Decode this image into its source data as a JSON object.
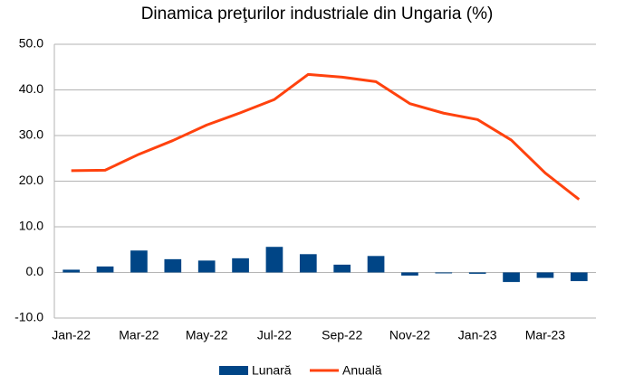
{
  "chart_data": {
    "type": "bar-line",
    "title": "Dinamica preţurilor industriale din Ungaria (%)",
    "categories": [
      "Jan-22",
      null,
      "Mar-22",
      null,
      "May-22",
      null,
      "Jul-22",
      null,
      "Sep-22",
      null,
      "Nov-22",
      null,
      "Jan-23",
      null,
      "Mar-23",
      null
    ],
    "series": [
      {
        "name": "Lunară",
        "type": "bar",
        "color": "#004586",
        "values": [
          0.6,
          1.3,
          4.8,
          2.9,
          2.6,
          3.1,
          5.6,
          4.0,
          1.7,
          3.6,
          -0.7,
          -0.2,
          -0.3,
          -2.1,
          -1.2,
          -1.9
        ]
      },
      {
        "name": "Anuală",
        "type": "line",
        "color": "#ff420e",
        "values": [
          22.3,
          22.4,
          25.9,
          28.9,
          32.3,
          35.0,
          37.9,
          43.4,
          42.8,
          41.8,
          37.0,
          34.9,
          33.5,
          29.0,
          21.8,
          16.0
        ]
      }
    ],
    "ylim": [
      -10,
      50
    ],
    "yticks": [
      {
        "value": -10,
        "label": "-10.0"
      },
      {
        "value": 0,
        "label": "0.0"
      },
      {
        "value": 10,
        "label": "10.0"
      },
      {
        "value": 20,
        "label": "20.0"
      },
      {
        "value": 30,
        "label": "30.0"
      },
      {
        "value": 40,
        "label": "40.0"
      },
      {
        "value": 50,
        "label": "50.0"
      }
    ],
    "grid": true,
    "legend": "bottom"
  }
}
